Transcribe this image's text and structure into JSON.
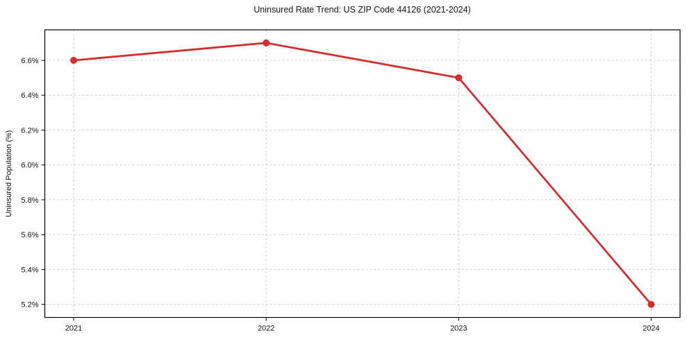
{
  "chart_data": {
    "type": "line",
    "title": "Uninsured Rate Trend: US ZIP Code 44126 (2021-2024)",
    "xlabel": "",
    "ylabel": "Uninsured Population (%)",
    "categories": [
      "2021",
      "2022",
      "2023",
      "2024"
    ],
    "series": [
      {
        "name": "Uninsured rate",
        "values": [
          6.6,
          6.7,
          6.5,
          5.2
        ]
      }
    ],
    "y_ticks": [
      5.2,
      5.4,
      5.6,
      5.8,
      6.0,
      6.2,
      6.4,
      6.6
    ],
    "y_tick_labels": [
      "5.2%",
      "5.4%",
      "5.6%",
      "5.8%",
      "6.0%",
      "6.2%",
      "6.4%",
      "6.6%"
    ],
    "ylim": [
      5.125,
      6.775
    ],
    "grid": true,
    "legend_position": "none",
    "colors": {
      "line": "#d32f2f",
      "marker": "#d32f2f",
      "grid": "#cccccc",
      "spine": "#000000",
      "text": "#111111",
      "background": "#ffffff"
    }
  }
}
